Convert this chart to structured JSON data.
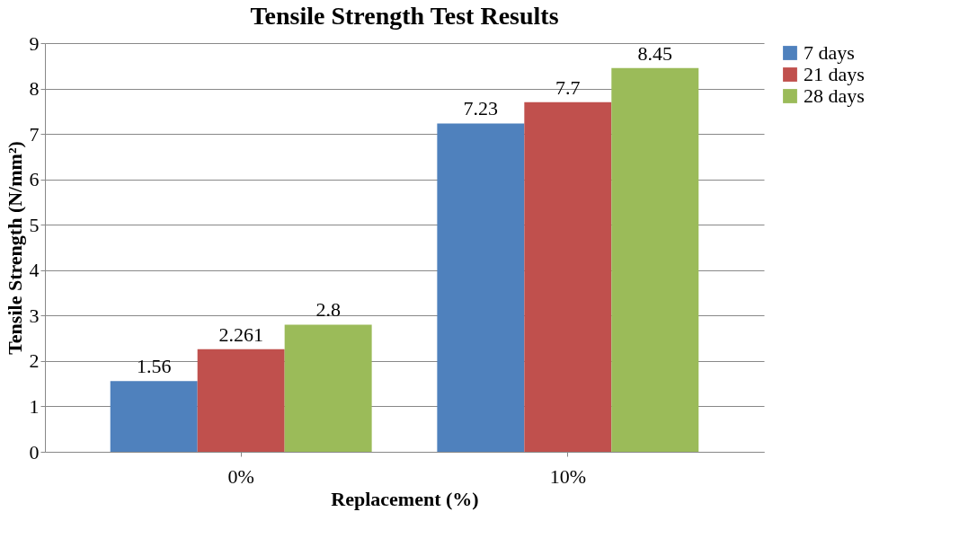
{
  "chart_data": {
    "type": "bar",
    "title": "Tensile Strength Test Results",
    "xlabel": "Replacement (%)",
    "ylabel": "Tensile Strength (N/mm²)",
    "categories": [
      "0%",
      "10%"
    ],
    "series": [
      {
        "name": "7 days",
        "color": "#4f81bd",
        "values": [
          1.56,
          7.23
        ]
      },
      {
        "name": "21 days",
        "color": "#c0504d",
        "values": [
          2.261,
          7.7
        ]
      },
      {
        "name": "28 days",
        "color": "#9bbb59",
        "values": [
          2.8,
          8.45
        ]
      }
    ],
    "ylim": [
      0,
      9
    ],
    "yticks": [
      0,
      1,
      2,
      3,
      4,
      5,
      6,
      7,
      8,
      9
    ],
    "grid": "y",
    "legend": "right",
    "data_labels": true
  }
}
